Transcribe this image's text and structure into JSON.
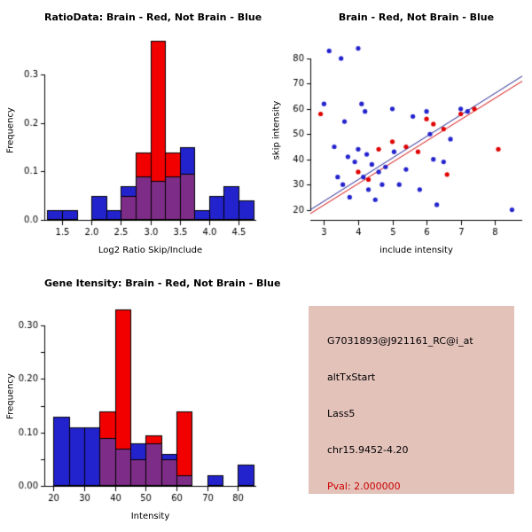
{
  "colors": {
    "blue": "#2323CE",
    "red": "#F20000",
    "overlap": "#7D2D87",
    "line_navy": "#1A1A8C",
    "line_red": "#D40000",
    "point_blue": "#2323CE",
    "point_red": "#E00000",
    "axis": "#000000",
    "infobox_bg": "#E3C2BA",
    "pval_red": "#CC0000"
  },
  "chart_data": [
    {
      "id": "ratio_histogram",
      "type": "bar",
      "variant": "overlaid_histogram",
      "title": "RatioData: Brain - Red, Not Brain - Blue",
      "xlabel": "Log2 Ratio Skip/Include",
      "ylabel": "Frequency",
      "xlim": [
        1.2,
        4.8
      ],
      "ylim": [
        0,
        0.37
      ],
      "xticks": [
        1.5,
        2.0,
        2.5,
        3.0,
        3.5,
        4.0,
        4.5
      ],
      "xtick_labels": [
        "1.5",
        "2.0",
        "2.5",
        "3.0",
        "3.5",
        "4.0",
        "4.5"
      ],
      "yticks": [
        0,
        0.1,
        0.2,
        0.3
      ],
      "ytick_labels": [
        "0.0",
        "0.1",
        "0.2",
        "0.3"
      ],
      "yticks_minor": [],
      "bin_start": 1.25,
      "bin_width": 0.25,
      "grid": false,
      "legend_note": "Brain - Red, Not Brain - Blue",
      "series": [
        {
          "name": "Not Brain (blue)",
          "color_key": "blue",
          "values": [
            0.02,
            0.02,
            0,
            0.05,
            0.02,
            0.07,
            0.09,
            0.08,
            0.09,
            0.15,
            0.02,
            0.05,
            0.07,
            0.04
          ]
        },
        {
          "name": "Brain (red)",
          "color_key": "red",
          "values": [
            0,
            0,
            0,
            0,
            0,
            0.05,
            0.14,
            0.37,
            0.14,
            0.095,
            0,
            0,
            0,
            0
          ]
        }
      ]
    },
    {
      "id": "intensity_scatter",
      "type": "scatter",
      "title": "Brain - Red, Not Brain - Blue",
      "xlabel": "include intensity",
      "ylabel": "skip intensity",
      "xlim": [
        2.6,
        8.8
      ],
      "ylim": [
        16,
        87
      ],
      "xticks": [
        3,
        4,
        5,
        6,
        7,
        8
      ],
      "xtick_labels": [
        "3",
        "4",
        "5",
        "6",
        "7",
        "8"
      ],
      "yticks": [
        20,
        30,
        40,
        50,
        60,
        70,
        80
      ],
      "ytick_labels": [
        "20",
        "30",
        "40",
        "50",
        "60",
        "70",
        "80"
      ],
      "grid": false,
      "series": [
        {
          "name": "Not Brain (blue)",
          "color_key": "point_blue",
          "points": [
            [
              3.0,
              62
            ],
            [
              3.15,
              83
            ],
            [
              3.3,
              45
            ],
            [
              3.4,
              33
            ],
            [
              3.5,
              80
            ],
            [
              3.55,
              30
            ],
            [
              3.6,
              55
            ],
            [
              3.7,
              41
            ],
            [
              3.75,
              25
            ],
            [
              3.9,
              39
            ],
            [
              4.0,
              84
            ],
            [
              4.0,
              44
            ],
            [
              4.1,
              62
            ],
            [
              4.15,
              33
            ],
            [
              4.2,
              59
            ],
            [
              4.25,
              42
            ],
            [
              4.3,
              28
            ],
            [
              4.4,
              38
            ],
            [
              4.5,
              24
            ],
            [
              4.6,
              35
            ],
            [
              4.7,
              30
            ],
            [
              4.8,
              37
            ],
            [
              5.0,
              60
            ],
            [
              5.05,
              43
            ],
            [
              5.2,
              30
            ],
            [
              5.4,
              36
            ],
            [
              5.6,
              57
            ],
            [
              5.8,
              28
            ],
            [
              6.0,
              59
            ],
            [
              6.1,
              50
            ],
            [
              6.2,
              40
            ],
            [
              6.3,
              22
            ],
            [
              6.5,
              39
            ],
            [
              6.7,
              48
            ],
            [
              7.0,
              60
            ],
            [
              7.2,
              59
            ],
            [
              8.5,
              20
            ]
          ]
        },
        {
          "name": "Brain (red)",
          "color_key": "point_red",
          "points": [
            [
              2.9,
              58
            ],
            [
              4.0,
              35
            ],
            [
              4.3,
              32
            ],
            [
              4.6,
              44
            ],
            [
              5.0,
              47
            ],
            [
              5.4,
              45
            ],
            [
              5.75,
              43
            ],
            [
              6.0,
              56
            ],
            [
              6.2,
              54
            ],
            [
              6.5,
              52
            ],
            [
              6.6,
              34
            ],
            [
              7.0,
              58
            ],
            [
              7.4,
              60
            ],
            [
              8.1,
              44
            ]
          ]
        }
      ],
      "fit_lines": [
        {
          "name": "not-brain-fit",
          "color_key": "line_navy",
          "x1": 2.6,
          "y1": 20,
          "x2": 8.8,
          "y2": 73
        },
        {
          "name": "brain-fit",
          "color_key": "line_red",
          "x1": 2.6,
          "y1": 18.5,
          "x2": 8.8,
          "y2": 71
        }
      ]
    },
    {
      "id": "gene_intensity_histogram",
      "type": "bar",
      "variant": "overlaid_histogram",
      "title": "Gene Itensity: Brain - Red, Not Brain - Blue",
      "xlabel": "Intensity",
      "ylabel": "Frequency",
      "xlim": [
        17,
        86
      ],
      "ylim": [
        0,
        0.335
      ],
      "xticks": [
        20,
        30,
        40,
        50,
        60,
        70,
        80
      ],
      "xtick_labels": [
        "20",
        "30",
        "40",
        "50",
        "60",
        "70",
        "80"
      ],
      "yticks": [
        0,
        0.1,
        0.2,
        0.3
      ],
      "ytick_labels": [
        "0.00",
        "0.10",
        "0.20",
        "0.30"
      ],
      "yticks_minor": [
        0.05,
        0.15,
        0.25
      ],
      "bin_start": 20,
      "bin_width": 5,
      "grid": false,
      "series": [
        {
          "name": "Not Brain (blue)",
          "color_key": "blue",
          "values": [
            0.13,
            0.11,
            0.11,
            0.09,
            0.07,
            0.08,
            0.08,
            0.06,
            0.02,
            0,
            0.02,
            0,
            0.04
          ]
        },
        {
          "name": "Brain (red)",
          "color_key": "red",
          "values": [
            0,
            0,
            0,
            0.14,
            0.33,
            0.05,
            0.095,
            0.05,
            0.14,
            0,
            0,
            0,
            0
          ]
        }
      ]
    }
  ],
  "info_box": {
    "lines": [
      {
        "name": "probe-id",
        "text": "G7031893@J921161_RC@i_at"
      },
      {
        "name": "event-type",
        "text": "altTxStart"
      },
      {
        "name": "gene-symbol",
        "text": "Lass5"
      },
      {
        "name": "locus",
        "text": "chr15.9452-4.20"
      }
    ],
    "pval": "Pval: 2.000000"
  }
}
